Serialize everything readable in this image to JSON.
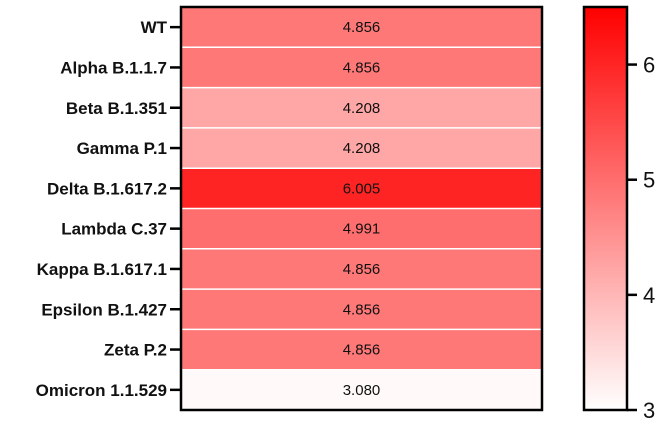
{
  "chart_data": {
    "type": "heatmap",
    "rows": [
      "WT",
      "Alpha B.1.1.7",
      "Beta B.1.351",
      "Gamma P.1",
      "Delta B.1.617.2",
      "Lambda C.37",
      "Kappa B.1.617.1",
      "Epsilon B.1.427",
      "Zeta P.2",
      "Omicron 1.1.529"
    ],
    "values": [
      4.856,
      4.856,
      4.208,
      4.208,
      6.005,
      4.991,
      4.856,
      4.856,
      4.856,
      3.08
    ],
    "value_labels": [
      "4.856",
      "4.856",
      "4.208",
      "4.208",
      "6.005",
      "4.991",
      "4.856",
      "4.856",
      "4.856",
      "3.080"
    ],
    "colorbar": {
      "min": 3,
      "max": 6.5,
      "ticks": [
        3,
        4,
        5,
        6
      ],
      "tick_labels": [
        "3",
        "4",
        "5",
        "6"
      ],
      "color_low": "#ffffff",
      "color_high": "#ff0000"
    },
    "title": "",
    "xlabel": "",
    "ylabel": ""
  }
}
